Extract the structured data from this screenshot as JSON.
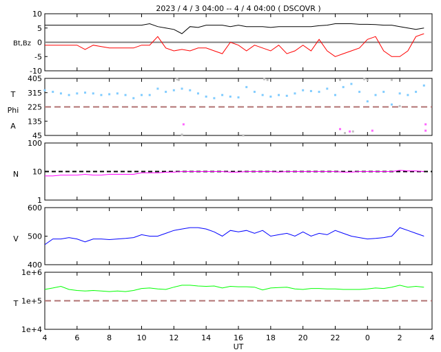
{
  "chart_data": {
    "type": "line",
    "title": "2023  /  4  /  3   04:00  --  4  /  4   04:00 ( DSCOVR )",
    "xlabel": "UT",
    "x_ticks": [
      "4",
      "6",
      "8",
      "10",
      "12",
      "14",
      "16",
      "18",
      "20",
      "22",
      "0",
      "2",
      "4"
    ],
    "x_start": 4,
    "x_step": 0.5,
    "panels": [
      {
        "id": "mag",
        "labels": [
          "Bt,Bz"
        ],
        "ylim": [
          -10,
          10
        ],
        "log": false,
        "yticks": [
          "10",
          "5",
          "0",
          "-5",
          "-10"
        ],
        "ytick_values": [
          10,
          5,
          0,
          -5,
          -10
        ],
        "ref": {
          "value": 0,
          "color": "#808080",
          "dashed": false
        },
        "series": [
          {
            "name": "Bt",
            "color": "#000000",
            "values": [
              6,
              6,
              6,
              6,
              6,
              6,
              6,
              6,
              6,
              6,
              6,
              6,
              6,
              6.5,
              5.5,
              5,
              4.5,
              3,
              5.5,
              5.2,
              6,
              6,
              6,
              5.5,
              6,
              5.5,
              5.5,
              5.5,
              5.2,
              5.5,
              5.5,
              5.5,
              5.5,
              5.5,
              5.8,
              6,
              6.5,
              6.5,
              6.5,
              6.3,
              6.3,
              6.2,
              6,
              6,
              5.5,
              5,
              4.5,
              5
            ]
          },
          {
            "name": "Bz",
            "color": "#ff0000",
            "values": [
              -1,
              -1,
              -1,
              -1,
              -1,
              -2.5,
              -1,
              -1.5,
              -2,
              -2,
              -2,
              -2,
              -1,
              -1,
              2,
              -2,
              -3,
              -2.5,
              -3,
              -2,
              -2,
              -3,
              -4,
              0,
              -1,
              -3,
              -1,
              -2,
              -3,
              -1,
              -4,
              -3,
              -1,
              -3,
              1,
              -3,
              -5,
              -4,
              -3,
              -2,
              1,
              2,
              -3,
              -5,
              -5,
              -3,
              2,
              3
            ]
          }
        ]
      },
      {
        "id": "phi",
        "labels": [
          "T",
          "Phi",
          "A"
        ],
        "ylim": [
          45,
          405
        ],
        "log": false,
        "yticks": [
          "405",
          "315",
          "225",
          "135",
          "45"
        ],
        "ytick_values": [
          405,
          315,
          225,
          135,
          45
        ],
        "ref": {
          "value": 225,
          "color": "#b07070",
          "dashed": true
        },
        "scatter": [
          {
            "name": "Phi",
            "color": "#80ccff",
            "values": [
              330,
              320,
              310,
              300,
              310,
              315,
              310,
              300,
              305,
              310,
              300,
              280,
              300,
              300,
              340,
              320,
              330,
              340,
              330,
              310,
              290,
              280,
              300,
              290,
              285,
              350,
              320,
              300,
              290,
              300,
              295,
              310,
              330,
              325,
              320,
              340,
              300,
              350,
              370,
              320,
              260,
              300,
              320,
              240,
              310,
              300,
              320,
              360
            ]
          },
          {
            "name": "Phi-gray",
            "color": "#c0c0c0",
            "x": [
              12.3,
              12.5,
              17.6,
              17.8,
              22.3,
              22.6,
              23.1,
              23.8,
              24.0,
              25.5,
              26.0,
              16.3,
              12.2
            ],
            "values": [
              395,
              50,
              400,
              395,
              395,
              60,
              70,
              400,
              395,
              395,
              230,
              45,
              400
            ]
          },
          {
            "name": "Phi-magenta",
            "color": "#ff66ff",
            "x": [
              12.6,
              22.3,
              22.9,
              24.3,
              27.6,
              27.6
            ],
            "values": [
              115,
              85,
              70,
              75,
              115,
              75
            ]
          }
        ]
      },
      {
        "id": "density",
        "labels": [
          "N"
        ],
        "ylim": [
          1,
          100
        ],
        "log": true,
        "yticks": [
          "100",
          "10",
          "1"
        ],
        "ytick_values": [
          100,
          10,
          1
        ],
        "ref": {
          "value": 10,
          "color": "#000000",
          "dashed": true
        },
        "series": [
          {
            "name": "N",
            "color": "#ff00ff",
            "values": [
              7,
              7,
              7.5,
              7.5,
              7.5,
              8,
              7.5,
              7.5,
              8,
              8,
              8,
              8,
              9,
              9,
              9,
              9.5,
              9.5,
              10,
              10,
              10,
              10,
              10,
              10,
              9.5,
              9.5,
              10,
              10,
              10,
              10,
              9.5,
              10,
              10,
              10,
              10,
              10,
              10,
              10,
              9.5,
              9.5,
              10,
              10,
              10,
              10,
              10,
              11,
              10.5,
              10.5,
              10
            ]
          }
        ]
      },
      {
        "id": "speed",
        "labels": [
          "V"
        ],
        "ylim": [
          400,
          600
        ],
        "log": false,
        "yticks": [
          "600",
          "500",
          "400"
        ],
        "ytick_values": [
          600,
          500,
          400
        ],
        "series": [
          {
            "name": "V",
            "color": "#0000ff",
            "values": [
              470,
              490,
              490,
              495,
              490,
              480,
              490,
              490,
              488,
              490,
              492,
              495,
              505,
              500,
              500,
              510,
              520,
              525,
              530,
              530,
              525,
              515,
              500,
              520,
              515,
              520,
              510,
              520,
              500,
              505,
              510,
              500,
              515,
              500,
              510,
              505,
              520,
              510,
              500,
              495,
              490,
              492,
              495,
              500,
              530,
              520,
              510,
              500
            ]
          }
        ]
      },
      {
        "id": "temp",
        "labels": [
          "T"
        ],
        "ylim": [
          10000,
          1000000
        ],
        "log": true,
        "yticks": [
          "1e+6",
          "1e+5",
          "1e+4"
        ],
        "ytick_values": [
          1000000,
          100000,
          10000
        ],
        "ref": {
          "value": 100000,
          "color": "#b07070",
          "dashed": true
        },
        "series": [
          {
            "name": "T",
            "color": "#00ff00",
            "values": [
              250000,
              280000,
              320000,
              250000,
              230000,
              220000,
              230000,
              220000,
              210000,
              220000,
              210000,
              230000,
              270000,
              280000,
              260000,
              250000,
              300000,
              350000,
              350000,
              330000,
              320000,
              330000,
              280000,
              320000,
              310000,
              310000,
              300000,
              240000,
              280000,
              290000,
              300000,
              260000,
              250000,
              270000,
              270000,
              260000,
              260000,
              250000,
              250000,
              250000,
              260000,
              280000,
              270000,
              300000,
              350000,
              300000,
              320000,
              300000
            ]
          }
        ]
      }
    ]
  }
}
